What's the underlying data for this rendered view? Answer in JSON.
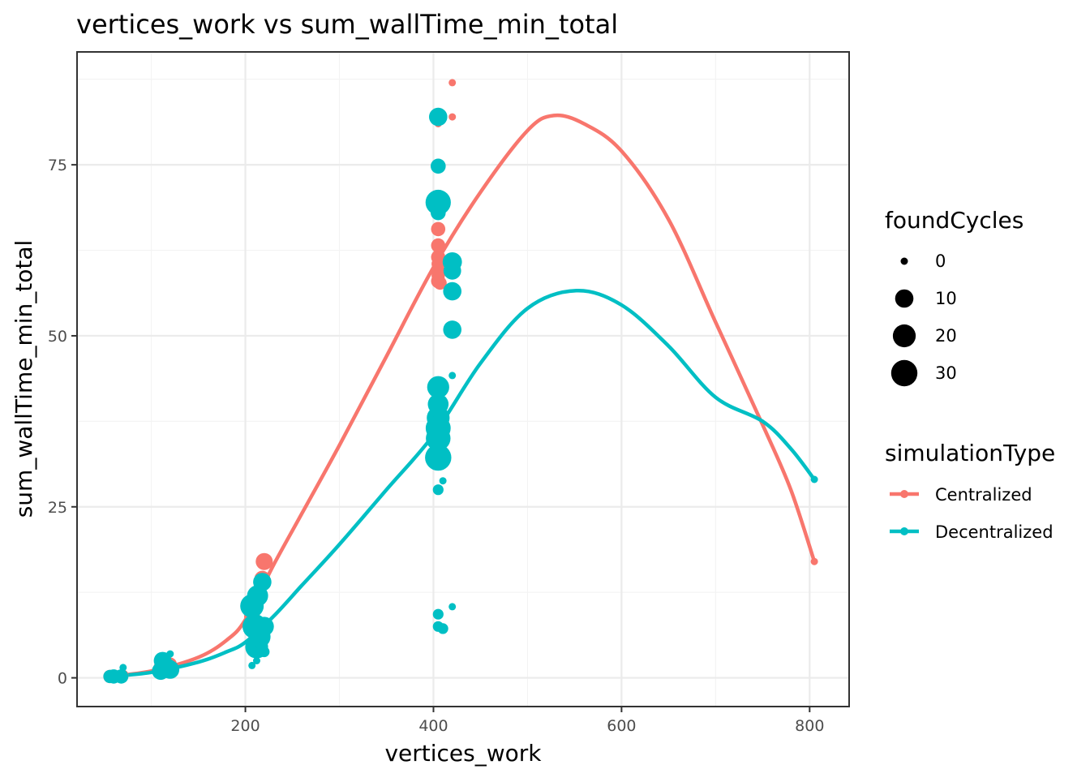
{
  "chart_data": {
    "type": "scatter",
    "title": "vertices_work  vs  sum_wallTime_min_total",
    "xlabel": "vertices_work",
    "ylabel": "sum_wallTime_min_total",
    "xlim": [
      21,
      842
    ],
    "ylim": [
      -4.2,
      91.5
    ],
    "x_ticks": [
      200,
      400,
      600,
      800
    ],
    "y_ticks": [
      0,
      25,
      50,
      75
    ],
    "x_minor": [
      100,
      300,
      500,
      700
    ],
    "y_minor": [
      12.5,
      37.5,
      62.5,
      87.5
    ],
    "grid": true,
    "legend_position": "right",
    "size_legend": {
      "title": "foundCycles",
      "entries": [
        {
          "label": "0",
          "value": 0
        },
        {
          "label": "10",
          "value": 10
        },
        {
          "label": "20",
          "value": 20
        },
        {
          "label": "30",
          "value": 30
        }
      ]
    },
    "series": [
      {
        "name": "Centralized",
        "color": "#F8766D",
        "points": [
          {
            "x": 56,
            "y": 0.2,
            "size": 3
          },
          {
            "x": 62,
            "y": 0.2,
            "size": 2
          },
          {
            "x": 70,
            "y": 0.4,
            "size": 1
          },
          {
            "x": 110,
            "y": 1.5,
            "size": 4
          },
          {
            "x": 120,
            "y": 2.0,
            "size": 3
          },
          {
            "x": 207,
            "y": 9.0,
            "size": 6
          },
          {
            "x": 210,
            "y": 8.0,
            "size": 8
          },
          {
            "x": 212,
            "y": 12.0,
            "size": 5
          },
          {
            "x": 218,
            "y": 14.5,
            "size": 6
          },
          {
            "x": 220,
            "y": 17.0,
            "size": 8
          },
          {
            "x": 405,
            "y": 81.0,
            "size": 0
          },
          {
            "x": 405,
            "y": 65.6,
            "size": 4
          },
          {
            "x": 405,
            "y": 63.2,
            "size": 4
          },
          {
            "x": 405,
            "y": 61.5,
            "size": 4
          },
          {
            "x": 405,
            "y": 60.5,
            "size": 3
          },
          {
            "x": 405,
            "y": 59.5,
            "size": 3
          },
          {
            "x": 405,
            "y": 58.8,
            "size": 3
          },
          {
            "x": 405,
            "y": 58.0,
            "size": 4
          },
          {
            "x": 407,
            "y": 57.7,
            "size": 3
          },
          {
            "x": 420,
            "y": 87.0,
            "size": 0
          },
          {
            "x": 420,
            "y": 82.0,
            "size": 0
          },
          {
            "x": 420,
            "y": 60.3,
            "size": 4
          },
          {
            "x": 805,
            "y": 17.0,
            "size": 0
          }
        ],
        "trend": [
          {
            "x": 56,
            "y": 0.2
          },
          {
            "x": 100,
            "y": 1.0
          },
          {
            "x": 150,
            "y": 3.0
          },
          {
            "x": 180,
            "y": 5.5
          },
          {
            "x": 200,
            "y": 8.5
          },
          {
            "x": 230,
            "y": 16.5
          },
          {
            "x": 260,
            "y": 24.0
          },
          {
            "x": 300,
            "y": 34.0
          },
          {
            "x": 350,
            "y": 47.0
          },
          {
            "x": 400,
            "y": 60.0
          },
          {
            "x": 450,
            "y": 71.0
          },
          {
            "x": 500,
            "y": 80.0
          },
          {
            "x": 528,
            "y": 82.2
          },
          {
            "x": 560,
            "y": 81.0
          },
          {
            "x": 600,
            "y": 77.0
          },
          {
            "x": 650,
            "y": 67.0
          },
          {
            "x": 700,
            "y": 52.0
          },
          {
            "x": 750,
            "y": 37.0
          },
          {
            "x": 780,
            "y": 27.5
          },
          {
            "x": 805,
            "y": 17.0
          }
        ]
      },
      {
        "name": "Decentralized",
        "color": "#00BFC4",
        "points": [
          {
            "x": 56,
            "y": 0.2,
            "size": 3
          },
          {
            "x": 60,
            "y": 0.2,
            "size": 4
          },
          {
            "x": 68,
            "y": 0.2,
            "size": 4
          },
          {
            "x": 70,
            "y": 1.5,
            "size": 0
          },
          {
            "x": 110,
            "y": 1.0,
            "size": 9
          },
          {
            "x": 112,
            "y": 2.5,
            "size": 9
          },
          {
            "x": 118,
            "y": 1.5,
            "size": 8
          },
          {
            "x": 120,
            "y": 1.2,
            "size": 10
          },
          {
            "x": 120,
            "y": 3.5,
            "size": 0
          },
          {
            "x": 207,
            "y": 10.5,
            "size": 22
          },
          {
            "x": 207,
            "y": 1.8,
            "size": 0
          },
          {
            "x": 210,
            "y": 7.5,
            "size": 25
          },
          {
            "x": 212,
            "y": 4.5,
            "size": 20
          },
          {
            "x": 212,
            "y": 2.5,
            "size": 0
          },
          {
            "x": 213,
            "y": 12.0,
            "size": 16
          },
          {
            "x": 215,
            "y": 6.0,
            "size": 18
          },
          {
            "x": 218,
            "y": 14.0,
            "size": 10
          },
          {
            "x": 218,
            "y": 5.0,
            "size": 0
          },
          {
            "x": 220,
            "y": 3.8,
            "size": 1
          },
          {
            "x": 220,
            "y": 7.5,
            "size": 12
          },
          {
            "x": 405,
            "y": 82.0,
            "size": 10
          },
          {
            "x": 405,
            "y": 74.8,
            "size": 5
          },
          {
            "x": 405,
            "y": 69.5,
            "size": 27
          },
          {
            "x": 405,
            "y": 68.0,
            "size": 5
          },
          {
            "x": 405,
            "y": 42.5,
            "size": 18
          },
          {
            "x": 405,
            "y": 40.0,
            "size": 15
          },
          {
            "x": 405,
            "y": 38.0,
            "size": 20
          },
          {
            "x": 405,
            "y": 36.5,
            "size": 26
          },
          {
            "x": 405,
            "y": 35.0,
            "size": 25
          },
          {
            "x": 405,
            "y": 32.2,
            "size": 30
          },
          {
            "x": 405,
            "y": 27.5,
            "size": 1
          },
          {
            "x": 405,
            "y": 9.3,
            "size": 1
          },
          {
            "x": 405,
            "y": 7.5,
            "size": 1
          },
          {
            "x": 410,
            "y": 28.8,
            "size": 0
          },
          {
            "x": 410,
            "y": 7.2,
            "size": 1
          },
          {
            "x": 420,
            "y": 60.8,
            "size": 12
          },
          {
            "x": 420,
            "y": 59.5,
            "size": 9
          },
          {
            "x": 420,
            "y": 56.5,
            "size": 10
          },
          {
            "x": 420,
            "y": 50.9,
            "size": 10
          },
          {
            "x": 420,
            "y": 44.2,
            "size": 0
          },
          {
            "x": 420,
            "y": 10.4,
            "size": 0
          },
          {
            "x": 805,
            "y": 29.0,
            "size": 0
          }
        ],
        "trend": [
          {
            "x": 56,
            "y": 0.2
          },
          {
            "x": 100,
            "y": 0.8
          },
          {
            "x": 150,
            "y": 2.3
          },
          {
            "x": 180,
            "y": 3.8
          },
          {
            "x": 200,
            "y": 5.2
          },
          {
            "x": 230,
            "y": 9.0
          },
          {
            "x": 260,
            "y": 13.5
          },
          {
            "x": 300,
            "y": 19.5
          },
          {
            "x": 350,
            "y": 27.5
          },
          {
            "x": 400,
            "y": 35.5
          },
          {
            "x": 450,
            "y": 46.0
          },
          {
            "x": 500,
            "y": 54.0
          },
          {
            "x": 552,
            "y": 56.6
          },
          {
            "x": 600,
            "y": 54.5
          },
          {
            "x": 650,
            "y": 48.5
          },
          {
            "x": 700,
            "y": 41.0
          },
          {
            "x": 750,
            "y": 37.5
          },
          {
            "x": 780,
            "y": 33.5
          },
          {
            "x": 805,
            "y": 29.0
          }
        ]
      }
    ]
  }
}
